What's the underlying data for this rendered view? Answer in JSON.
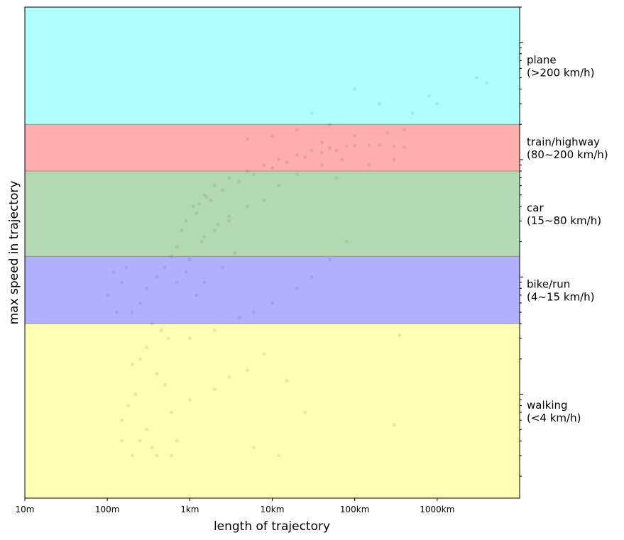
{
  "chart_data": {
    "type": "scatter",
    "xlabel": "length of trajectory",
    "ylabel": "max speed in trajectory",
    "x_scale": "log",
    "y_scale": "log",
    "xlim_m": [
      10,
      10000000
    ],
    "ylim_kmh": [
      0.13,
      2000
    ],
    "x_ticks": [
      {
        "value_m": 10,
        "label": "10m"
      },
      {
        "value_m": 100,
        "label": "100m"
      },
      {
        "value_m": 1000,
        "label": "1km"
      },
      {
        "value_m": 10000,
        "label": "10km"
      },
      {
        "value_m": 100000,
        "label": "100km"
      },
      {
        "value_m": 1000000,
        "label": "1000km"
      }
    ],
    "bands": [
      {
        "line1": "plane",
        "line2": "(>200 km/h)",
        "min_kmh": 200,
        "max_kmh": 2000,
        "color": "#b0ffff"
      },
      {
        "line1": "train/highway",
        "line2": "(80~200 km/h)",
        "min_kmh": 80,
        "max_kmh": 200,
        "color": "#ffaeae"
      },
      {
        "line1": "car",
        "line2": "(15~80 km/h)",
        "min_kmh": 15,
        "max_kmh": 80,
        "color": "#b3d9b3"
      },
      {
        "line1": "bike/run",
        "line2": "(4~15 km/h)",
        "min_kmh": 4,
        "max_kmh": 15,
        "color": "#b0b0ff"
      },
      {
        "line1": "walking",
        "line2": "(<4 km/h)",
        "min_kmh": 0.13,
        "max_kmh": 4,
        "color": "#ffffb3"
      }
    ],
    "point_color": "#000000",
    "point_alpha": 0.08,
    "grid": false,
    "legend": "none",
    "points": [
      [
        1500,
        50
      ],
      [
        2000,
        60
      ],
      [
        3000,
        70
      ],
      [
        5000,
        80
      ],
      [
        8000,
        90
      ],
      [
        12000,
        100
      ],
      [
        20000,
        110
      ],
      [
        30000,
        120
      ],
      [
        50000,
        125
      ],
      [
        80000,
        130
      ],
      [
        100000,
        132
      ],
      [
        150000,
        133
      ],
      [
        200000,
        133
      ],
      [
        300000,
        130
      ],
      [
        400000,
        128
      ],
      [
        1200,
        35
      ],
      [
        1800,
        45
      ],
      [
        2500,
        55
      ],
      [
        4000,
        65
      ],
      [
        6000,
        75
      ],
      [
        10000,
        85
      ],
      [
        15000,
        95
      ],
      [
        25000,
        105
      ],
      [
        40000,
        115
      ],
      [
        60000,
        120
      ],
      [
        800,
        25
      ],
      [
        900,
        30
      ],
      [
        1100,
        40
      ],
      [
        1300,
        42
      ],
      [
        1600,
        48
      ],
      [
        700,
        18
      ],
      [
        600,
        15
      ],
      [
        500,
        12
      ],
      [
        400,
        10
      ],
      [
        300,
        8
      ],
      [
        250,
        6
      ],
      [
        200,
        5
      ],
      [
        350,
        4
      ],
      [
        450,
        3.5
      ],
      [
        550,
        3
      ],
      [
        300,
        2.5
      ],
      [
        250,
        2
      ],
      [
        200,
        1.8
      ],
      [
        400,
        1.5
      ],
      [
        500,
        1.2
      ],
      [
        220,
        1
      ],
      [
        180,
        0.8
      ],
      [
        150,
        0.6
      ],
      [
        300,
        0.5
      ],
      [
        600,
        0.7
      ],
      [
        1000,
        0.9
      ],
      [
        2000,
        1.1
      ],
      [
        3000,
        1.4
      ],
      [
        5000,
        1.6
      ],
      [
        8000,
        2.2
      ],
      [
        15000,
        1.3
      ],
      [
        1000,
        3
      ],
      [
        2000,
        3.5
      ],
      [
        4000,
        4.5
      ],
      [
        6000,
        5
      ],
      [
        10000,
        6
      ],
      [
        20000,
        8
      ],
      [
        30000,
        10
      ],
      [
        50000,
        14
      ],
      [
        80000,
        20
      ],
      [
        1200,
        7
      ],
      [
        1500,
        9
      ],
      [
        2500,
        12
      ],
      [
        3500,
        16
      ],
      [
        900,
        11
      ],
      [
        700,
        9
      ],
      [
        1000,
        14
      ],
      [
        1400,
        20
      ],
      [
        2200,
        28
      ],
      [
        3000,
        33
      ],
      [
        100,
        7
      ],
      [
        150,
        9
      ],
      [
        120,
        11
      ],
      [
        170,
        12
      ],
      [
        130,
        5
      ],
      [
        12000,
        60
      ],
      [
        20000,
        75
      ],
      [
        40000,
        90
      ],
      [
        70000,
        100
      ],
      [
        8000,
        45
      ],
      [
        5000,
        40
      ],
      [
        3000,
        30
      ],
      [
        2000,
        25
      ],
      [
        1500,
        22
      ],
      [
        60000,
        70
      ],
      [
        150000,
        90
      ],
      [
        300000,
        100
      ],
      [
        1000000,
        300
      ],
      [
        3000000,
        500
      ],
      [
        4000000,
        450
      ],
      [
        800000,
        350
      ],
      [
        500000,
        250
      ],
      [
        200000,
        300
      ],
      [
        100000,
        400
      ],
      [
        50000,
        200
      ],
      [
        30000,
        250
      ],
      [
        20000,
        180
      ],
      [
        10000,
        160
      ],
      [
        5000,
        150
      ],
      [
        40000,
        140
      ],
      [
        100000,
        160
      ],
      [
        250000,
        170
      ],
      [
        400000,
        180
      ],
      [
        200,
        0.3
      ],
      [
        400,
        0.3
      ],
      [
        600,
        0.3
      ],
      [
        150,
        0.4
      ],
      [
        250,
        0.4
      ],
      [
        700,
        0.4
      ],
      [
        350,
        0.35
      ],
      [
        12000,
        0.3
      ],
      [
        300000,
        0.55
      ],
      [
        350000,
        3.2
      ],
      [
        25000,
        0.7
      ],
      [
        6000,
        0.35
      ]
    ]
  }
}
